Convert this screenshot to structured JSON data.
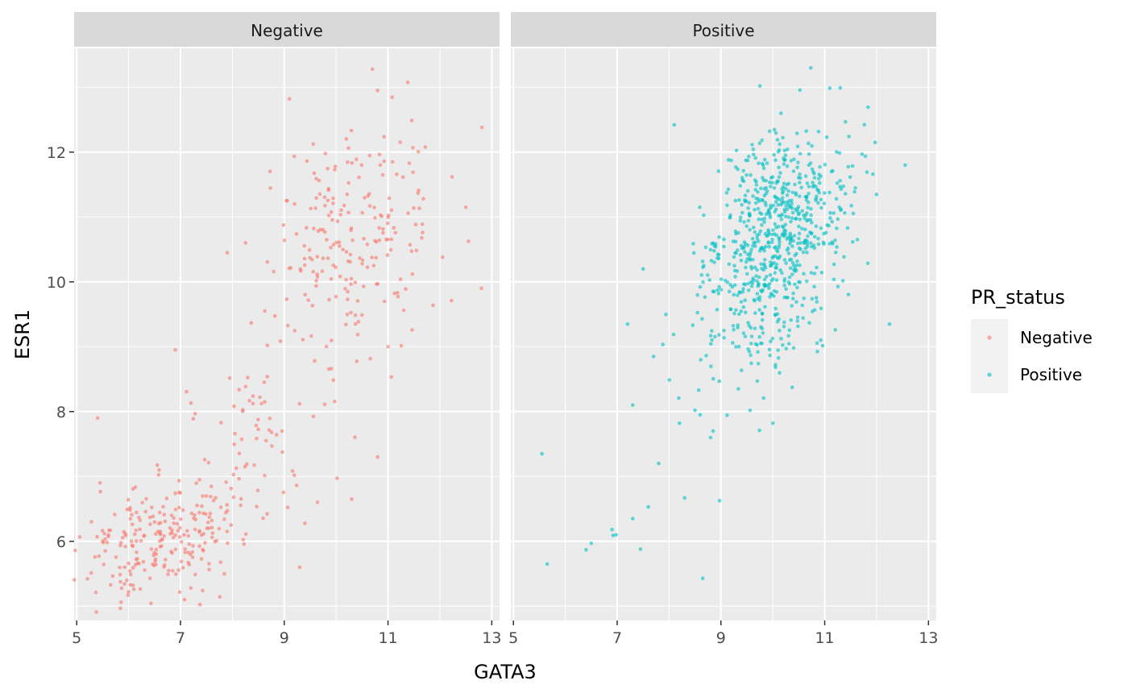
{
  "chart_data": {
    "type": "scatter",
    "facet_by": "PR_status",
    "xlabel": "GATA3",
    "ylabel": "ESR1",
    "xlim": [
      4.95,
      13.15
    ],
    "ylim": [
      4.78,
      13.6
    ],
    "x_ticks": [
      5,
      7,
      9,
      11,
      13
    ],
    "y_ticks": [
      6,
      8,
      10,
      12
    ],
    "x_tick_labels": [
      "5",
      "7",
      "9",
      "11",
      "13"
    ],
    "y_tick_labels": [
      "6",
      "8",
      "10",
      "12"
    ],
    "grid": true,
    "point_alpha": 0.6,
    "legend": {
      "title": "PR_status",
      "placement": "right",
      "entries": [
        {
          "label": "Negative",
          "color": "#F8766D"
        },
        {
          "label": "Positive",
          "color": "#00BFC4"
        }
      ]
    },
    "panels": [
      {
        "strip_label": "Negative",
        "color": "#F8766D",
        "cloud": {
          "n": 520,
          "components": [
            {
              "weight": 0.38,
              "mean": [
                6.6,
                6.0
              ],
              "sd": [
                0.75,
                0.45
              ],
              "corr": 0.25
            },
            {
              "weight": 0.17,
              "mean": [
                8.3,
                7.3
              ],
              "sd": [
                0.8,
                0.85
              ],
              "corr": 0.35
            },
            {
              "weight": 0.45,
              "mean": [
                10.2,
                10.6
              ],
              "sd": [
                0.8,
                0.95
              ],
              "corr": 0.3
            }
          ]
        },
        "points": [
          {
            "x": 10.7,
            "y": 13.28
          },
          {
            "x": 10.8,
            "y": 12.95
          },
          {
            "x": 9.1,
            "y": 12.82
          },
          {
            "x": 12.8,
            "y": 9.9
          },
          {
            "x": 12.5,
            "y": 11.15
          },
          {
            "x": 5.4,
            "y": 7.9
          },
          {
            "x": 5.45,
            "y": 6.9
          },
          {
            "x": 6.9,
            "y": 8.95
          },
          {
            "x": 7.9,
            "y": 10.45
          },
          {
            "x": 10.8,
            "y": 7.3
          },
          {
            "x": 10.3,
            "y": 6.65
          },
          {
            "x": 9.3,
            "y": 5.6
          },
          {
            "x": 6.0,
            "y": 5.22
          },
          {
            "x": 7.2,
            "y": 5.28
          },
          {
            "x": 11.0,
            "y": 9.0
          }
        ]
      },
      {
        "strip_label": "Positive",
        "color": "#00BFC4",
        "cloud": {
          "n": 740,
          "components": [
            {
              "weight": 0.55,
              "mean": [
                10.3,
                11.1
              ],
              "sd": [
                0.65,
                0.65
              ],
              "corr": 0.15
            },
            {
              "weight": 0.45,
              "mean": [
                9.8,
                9.9
              ],
              "sd": [
                0.65,
                0.8
              ],
              "corr": 0.2
            }
          ]
        },
        "points": [
          {
            "x": 5.55,
            "y": 7.35
          },
          {
            "x": 5.65,
            "y": 5.65
          },
          {
            "x": 6.4,
            "y": 5.87
          },
          {
            "x": 6.5,
            "y": 5.97
          },
          {
            "x": 6.9,
            "y": 6.18
          },
          {
            "x": 6.92,
            "y": 6.09
          },
          {
            "x": 6.98,
            "y": 6.1
          },
          {
            "x": 7.3,
            "y": 6.35
          },
          {
            "x": 7.45,
            "y": 5.88
          },
          {
            "x": 7.6,
            "y": 6.53
          },
          {
            "x": 8.3,
            "y": 6.67
          },
          {
            "x": 8.65,
            "y": 5.43
          },
          {
            "x": 7.8,
            "y": 7.2
          },
          {
            "x": 7.2,
            "y": 9.35
          },
          {
            "x": 7.5,
            "y": 10.2
          },
          {
            "x": 8.1,
            "y": 12.42
          },
          {
            "x": 9.75,
            "y": 13.02
          },
          {
            "x": 11.3,
            "y": 12.99
          },
          {
            "x": 12.55,
            "y": 11.8
          },
          {
            "x": 12.25,
            "y": 9.35
          },
          {
            "x": 7.3,
            "y": 8.1
          },
          {
            "x": 8.8,
            "y": 7.6
          },
          {
            "x": 8.85,
            "y": 7.7
          },
          {
            "x": 8.2,
            "y": 7.82
          },
          {
            "x": 8.5,
            "y": 8.02
          },
          {
            "x": 8.6,
            "y": 7.95
          },
          {
            "x": 10.0,
            "y": 7.82
          },
          {
            "x": 7.7,
            "y": 8.85
          }
        ]
      }
    ]
  }
}
